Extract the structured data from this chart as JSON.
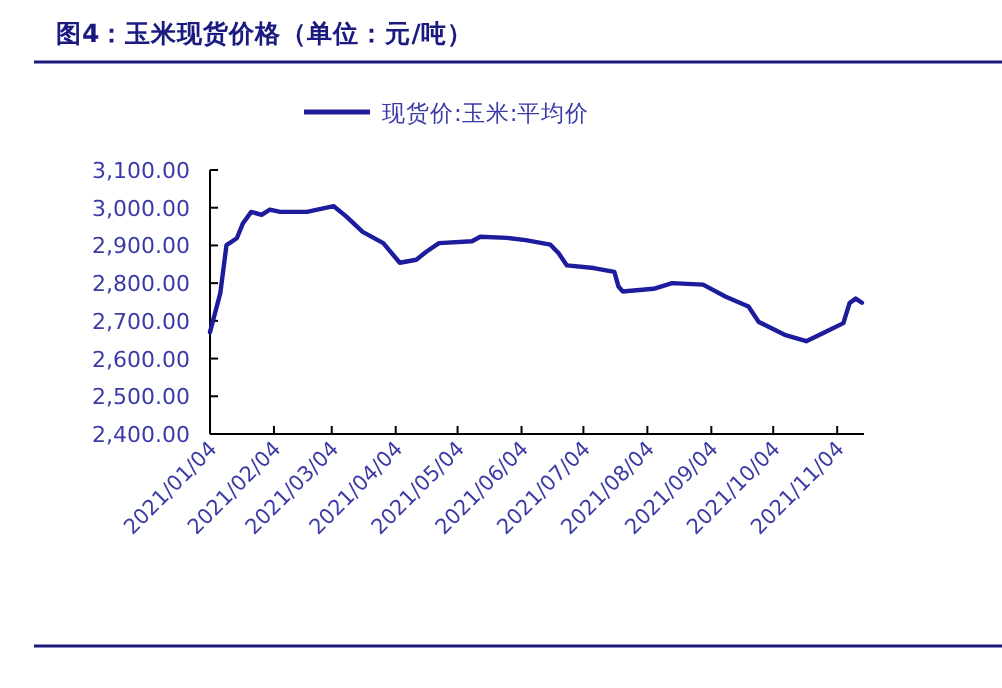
{
  "chart_data": {
    "type": "line",
    "title": "图4：玉米现货价格（单位：元/吨）",
    "legend": "top",
    "grid": false,
    "x": [
      "2021-01-04",
      "2021-01-09",
      "2021-01-12",
      "2021-01-17",
      "2021-01-20",
      "2021-01-24",
      "2021-01-29",
      "2021-02-02",
      "2021-02-07",
      "2021-02-20",
      "2021-03-05",
      "2021-03-11",
      "2021-03-19",
      "2021-03-29",
      "2021-04-06",
      "2021-04-14",
      "2021-04-19",
      "2021-04-25",
      "2021-05-11",
      "2021-05-15",
      "2021-05-28",
      "2021-06-06",
      "2021-06-18",
      "2021-06-22",
      "2021-06-26",
      "2021-07-09",
      "2021-07-19",
      "2021-07-21",
      "2021-07-23",
      "2021-08-07",
      "2021-08-16",
      "2021-08-31",
      "2021-09-11",
      "2021-09-22",
      "2021-09-27",
      "2021-10-10",
      "2021-10-20",
      "2021-10-29",
      "2021-11-07",
      "2021-11-10",
      "2021-11-13",
      "2021-11-16"
    ],
    "series": [
      {
        "name": "现货价:玉米:平均价",
        "color": "#1c1c9c",
        "values": [
          2670,
          2774,
          2901,
          2919,
          2959,
          2989,
          2981,
          2995,
          2989,
          2989,
          3004,
          2977,
          2936,
          2906,
          2854,
          2862,
          2884,
          2906,
          2911,
          2923,
          2920,
          2914,
          2902,
          2879,
          2847,
          2840,
          2830,
          2791,
          2778,
          2785,
          2800,
          2796,
          2764,
          2738,
          2697,
          2662,
          2646,
          2670,
          2694,
          2747,
          2759,
          2748
        ]
      }
    ],
    "xlim": [
      "2021-01-04",
      "2021-11-17"
    ],
    "xticks": [
      {
        "value": "2021-01-04",
        "label": "2021/01/04"
      },
      {
        "value": "2021-02-04",
        "label": "2021/02/04"
      },
      {
        "value": "2021-03-04",
        "label": "2021/03/04"
      },
      {
        "value": "2021-04-04",
        "label": "2021/04/04"
      },
      {
        "value": "2021-05-04",
        "label": "2021/05/04"
      },
      {
        "value": "2021-06-04",
        "label": "2021/06/04"
      },
      {
        "value": "2021-07-04",
        "label": "2021/07/04"
      },
      {
        "value": "2021-08-04",
        "label": "2021/08/04"
      },
      {
        "value": "2021-09-04",
        "label": "2021/09/04"
      },
      {
        "value": "2021-10-04",
        "label": "2021/10/04"
      },
      {
        "value": "2021-11-04",
        "label": "2021/11/04"
      }
    ],
    "ylim": [
      2400,
      3100
    ],
    "yticks": [
      {
        "value": 2400,
        "label": "2,400.00"
      },
      {
        "value": 2500,
        "label": "2,500.00"
      },
      {
        "value": 2600,
        "label": "2,600.00"
      },
      {
        "value": 2700,
        "label": "2,700.00"
      },
      {
        "value": 2800,
        "label": "2,800.00"
      },
      {
        "value": 2900,
        "label": "2,900.00"
      },
      {
        "value": 3000,
        "label": "3,000.00"
      },
      {
        "value": 3100,
        "label": "3,100.00"
      }
    ]
  }
}
